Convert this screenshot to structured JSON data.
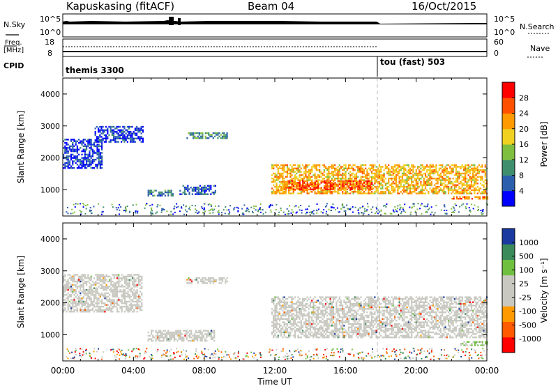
{
  "header": {
    "station": "Kapuskasing (fitACF)",
    "beam": "Beam 04",
    "date": "16/Oct/2015"
  },
  "status_panel": {
    "nsky_label": "N.Sky",
    "nsky_ticks": [
      "10^5",
      "10^0"
    ],
    "nsearch_label": "N.Search",
    "nsearch_ticks": [
      "10^5",
      "10^0"
    ],
    "freq_label": "Freq.",
    "freq_unit": "[MHz]",
    "freq_ticks": [
      "18",
      "8"
    ],
    "nave_label": "Nave",
    "nave_ticks": [
      "60",
      "0"
    ],
    "cpid_label": "CPID",
    "cpid_segments": [
      {
        "label": "themis 3300",
        "start_hour": 0
      },
      {
        "label": "tou (fast) 503",
        "start_hour": 18
      }
    ]
  },
  "colors": {
    "power_scale": [
      "#0000ff",
      "#2b5fae",
      "#3f8f6e",
      "#7fbf3f",
      "#f0d020",
      "#ff9a00",
      "#ff5000",
      "#ff0000"
    ],
    "velocity_scale": [
      "#ff0000",
      "#ff5a00",
      "#ff9a00",
      "#c8c8c0",
      "#c8c8c0",
      "#70c040",
      "#3b8a5a",
      "#1a3aa0"
    ],
    "ground_scatter": "#c8c8c0"
  },
  "chart_data": [
    {
      "type": "heatmap",
      "name": "power",
      "ylabel": "Slant Range [km]",
      "yticks": [
        1000,
        2000,
        3000,
        4000
      ],
      "ylim": [
        180,
        4500
      ],
      "xlim": [
        0,
        24
      ],
      "colorbar_label": "Power [dB]",
      "colorbar_ticks": [
        "4",
        "8",
        "12",
        "16",
        "20",
        "24",
        "28"
      ],
      "colorbar_range": [
        0,
        32
      ],
      "features": [
        {
          "x_start": 0.0,
          "x_end": 2.2,
          "y_start": 1700,
          "y_end": 2600,
          "level": 4
        },
        {
          "x_start": 1.8,
          "x_end": 4.5,
          "y_start": 2500,
          "y_end": 3000,
          "level": 4
        },
        {
          "x_start": 4.8,
          "x_end": 6.2,
          "y_start": 800,
          "y_end": 1000,
          "level": 8
        },
        {
          "x_start": 6.6,
          "x_end": 8.6,
          "y_start": 850,
          "y_end": 1150,
          "level": 6
        },
        {
          "x_start": 7.0,
          "x_end": 9.3,
          "y_start": 2600,
          "y_end": 2800,
          "level": 10
        },
        {
          "x_start": 11.8,
          "x_end": 24.0,
          "y_start": 900,
          "y_end": 1800,
          "level": 20
        },
        {
          "x_start": 12.5,
          "x_end": 17.5,
          "y_start": 1000,
          "y_end": 1300,
          "level": 26
        },
        {
          "x_start": 22.0,
          "x_end": 24.0,
          "y_start": 700,
          "y_end": 800,
          "level": 24
        }
      ]
    },
    {
      "type": "heatmap",
      "name": "velocity",
      "ylabel": "Slant Range [km]",
      "yticks": [
        1000,
        2000,
        3000,
        4000
      ],
      "ylim": [
        180,
        4500
      ],
      "xlim": [
        0,
        24
      ],
      "xlabel": "Time UT",
      "xticks": [
        "00:00",
        "04:00",
        "08:00",
        "12:00",
        "16:00",
        "20:00",
        "00:00"
      ],
      "colorbar_label": "Velocity [m s⁻¹]",
      "colorbar_ticks": [
        "-1000",
        "-500",
        "-100",
        "-25",
        "25",
        "100",
        "500",
        "1000"
      ],
      "features": [
        {
          "x_start": 0.0,
          "x_end": 4.5,
          "y_start": 1700,
          "y_end": 2900,
          "velocity": 0
        },
        {
          "x_start": 4.8,
          "x_end": 8.6,
          "y_start": 800,
          "y_end": 1150,
          "velocity": 0
        },
        {
          "x_start": 7.0,
          "x_end": 9.3,
          "y_start": 2600,
          "y_end": 2800,
          "velocity": 0
        },
        {
          "x_start": 11.8,
          "x_end": 24.0,
          "y_start": 900,
          "y_end": 2200,
          "velocity": 0
        },
        {
          "x_start": 22.5,
          "x_end": 24.0,
          "y_start": 650,
          "y_end": 800,
          "velocity": 80
        }
      ]
    }
  ]
}
